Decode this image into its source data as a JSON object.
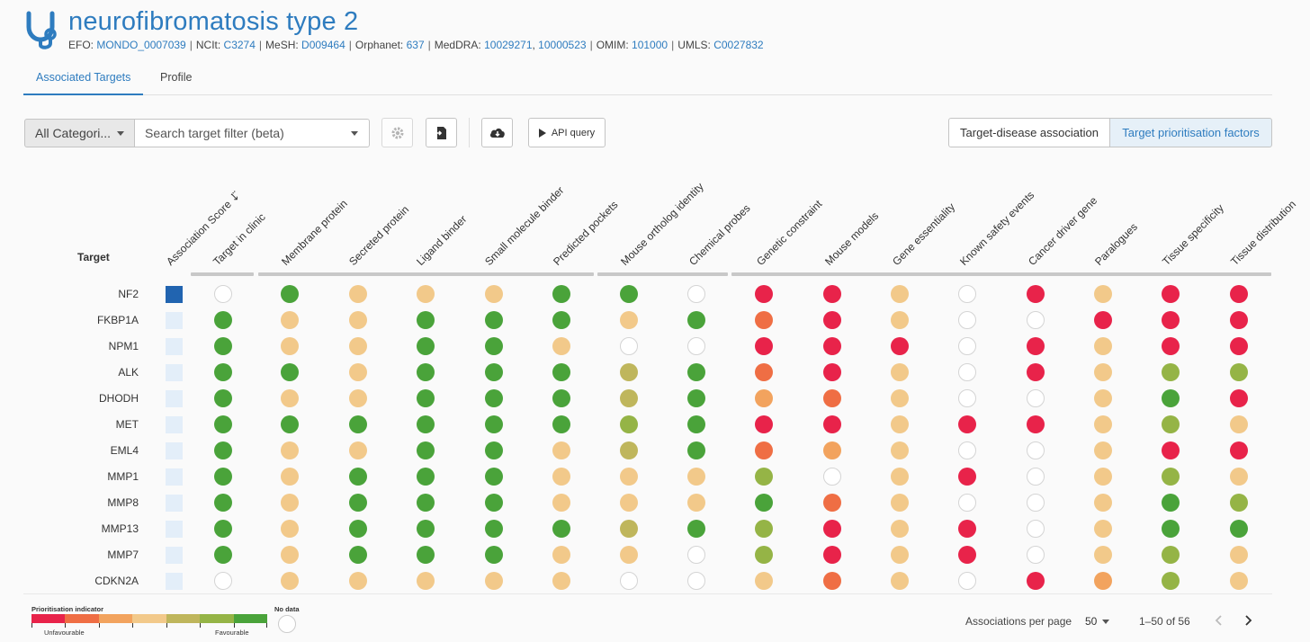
{
  "header": {
    "title": "neurofibromatosis type 2",
    "ids": [
      {
        "label": "EFO:",
        "values": [
          "MONDO_0007039"
        ]
      },
      {
        "label": "NCIt:",
        "values": [
          "C3274"
        ]
      },
      {
        "label": "MeSH:",
        "values": [
          "D009464"
        ]
      },
      {
        "label": "Orphanet:",
        "values": [
          "637"
        ]
      },
      {
        "label": "MedDRA:",
        "values": [
          "10029271",
          "10000523"
        ]
      },
      {
        "label": "OMIM:",
        "values": [
          "101000"
        ]
      },
      {
        "label": "UMLS:",
        "values": [
          "C0027832"
        ]
      }
    ],
    "logo_icon": "stethoscope-icon",
    "brand_color": "#2e7cbf"
  },
  "tabs": [
    {
      "label": "Associated Targets",
      "active": true
    },
    {
      "label": "Profile",
      "active": false
    }
  ],
  "toolbar": {
    "category_value": "All Categori...",
    "search_placeholder": "Search target filter (beta)",
    "settings_icon": "gear-icon",
    "export_icon": "file-export-icon",
    "download_icon": "cloud-download-icon",
    "api_label": "API query",
    "toggle_association": "Target-disease association",
    "toggle_prioritisation": "Target prioritisation factors"
  },
  "table": {
    "target_header": "Target",
    "columns": [
      "Association Score ↓⃛",
      "Target in clinic",
      "Membrane protein",
      "Secreted protein",
      "Ligand binder",
      "Small molecule binder",
      "Predicted pockets",
      "Mouse ortholog identity",
      "Chemical probes",
      "Genetic constraint",
      "Mouse models",
      "Gene essentiality",
      "Known safety events",
      "Cancer driver gene",
      "Paralogues",
      "Tissue specificity",
      "Tissue distribution"
    ],
    "colors": {
      "R": "#e8234a",
      "O": "#ef6e44",
      "A": "#f2a35e",
      "Y": "#f2c98a",
      "K": "#bfb65c",
      "L": "#95b446",
      "G": "#4aa33a",
      "N": "#ffffff"
    },
    "rows": [
      {
        "target": "NF2",
        "score": "high",
        "cells": "NGYYYGGNRRYNRYRR"
      },
      {
        "target": "FKBP1A",
        "score": "low",
        "cells": "GYYGGGYGORYNNRRR"
      },
      {
        "target": "NPM1",
        "score": "low",
        "cells": "GYYGGYNNRRRNRYRR"
      },
      {
        "target": "ALK",
        "score": "low",
        "cells": "GGYGGGKGORYNRYLL"
      },
      {
        "target": "DHODH",
        "score": "low",
        "cells": "GYYGGGKGAOYNNYGR"
      },
      {
        "target": "MET",
        "score": "low",
        "cells": "GGGGGGLGRRYRRYLY"
      },
      {
        "target": "EML4",
        "score": "low",
        "cells": "GYYGGYKGOAYNNYRR"
      },
      {
        "target": "MMP1",
        "score": "low",
        "cells": "GYGGGYYYLNYRNYLY"
      },
      {
        "target": "MMP8",
        "score": "low",
        "cells": "GYGGGYYYGOYNNYGL"
      },
      {
        "target": "MMP13",
        "score": "low",
        "cells": "GYGGGGKGLRYRNYGG"
      },
      {
        "target": "MMP7",
        "score": "low",
        "cells": "GYGGGYYNLRYRNYLY"
      },
      {
        "target": "CDKN2A",
        "score": "low",
        "cells": "NYYYYYNNYOYNRALY"
      }
    ]
  },
  "legend": {
    "title": "Prioritisation indicator",
    "low_label": "Unfavourable",
    "high_label": "Favourable",
    "no_data_label": "No data",
    "scale_colors": [
      "#e8234a",
      "#ef6e44",
      "#f2a35e",
      "#f2c98a",
      "#bfb65c",
      "#95b446",
      "#4aa33a"
    ]
  },
  "pagination": {
    "per_page_label": "Associations per page",
    "per_page_value": "50",
    "range": "1–50 of 56"
  }
}
